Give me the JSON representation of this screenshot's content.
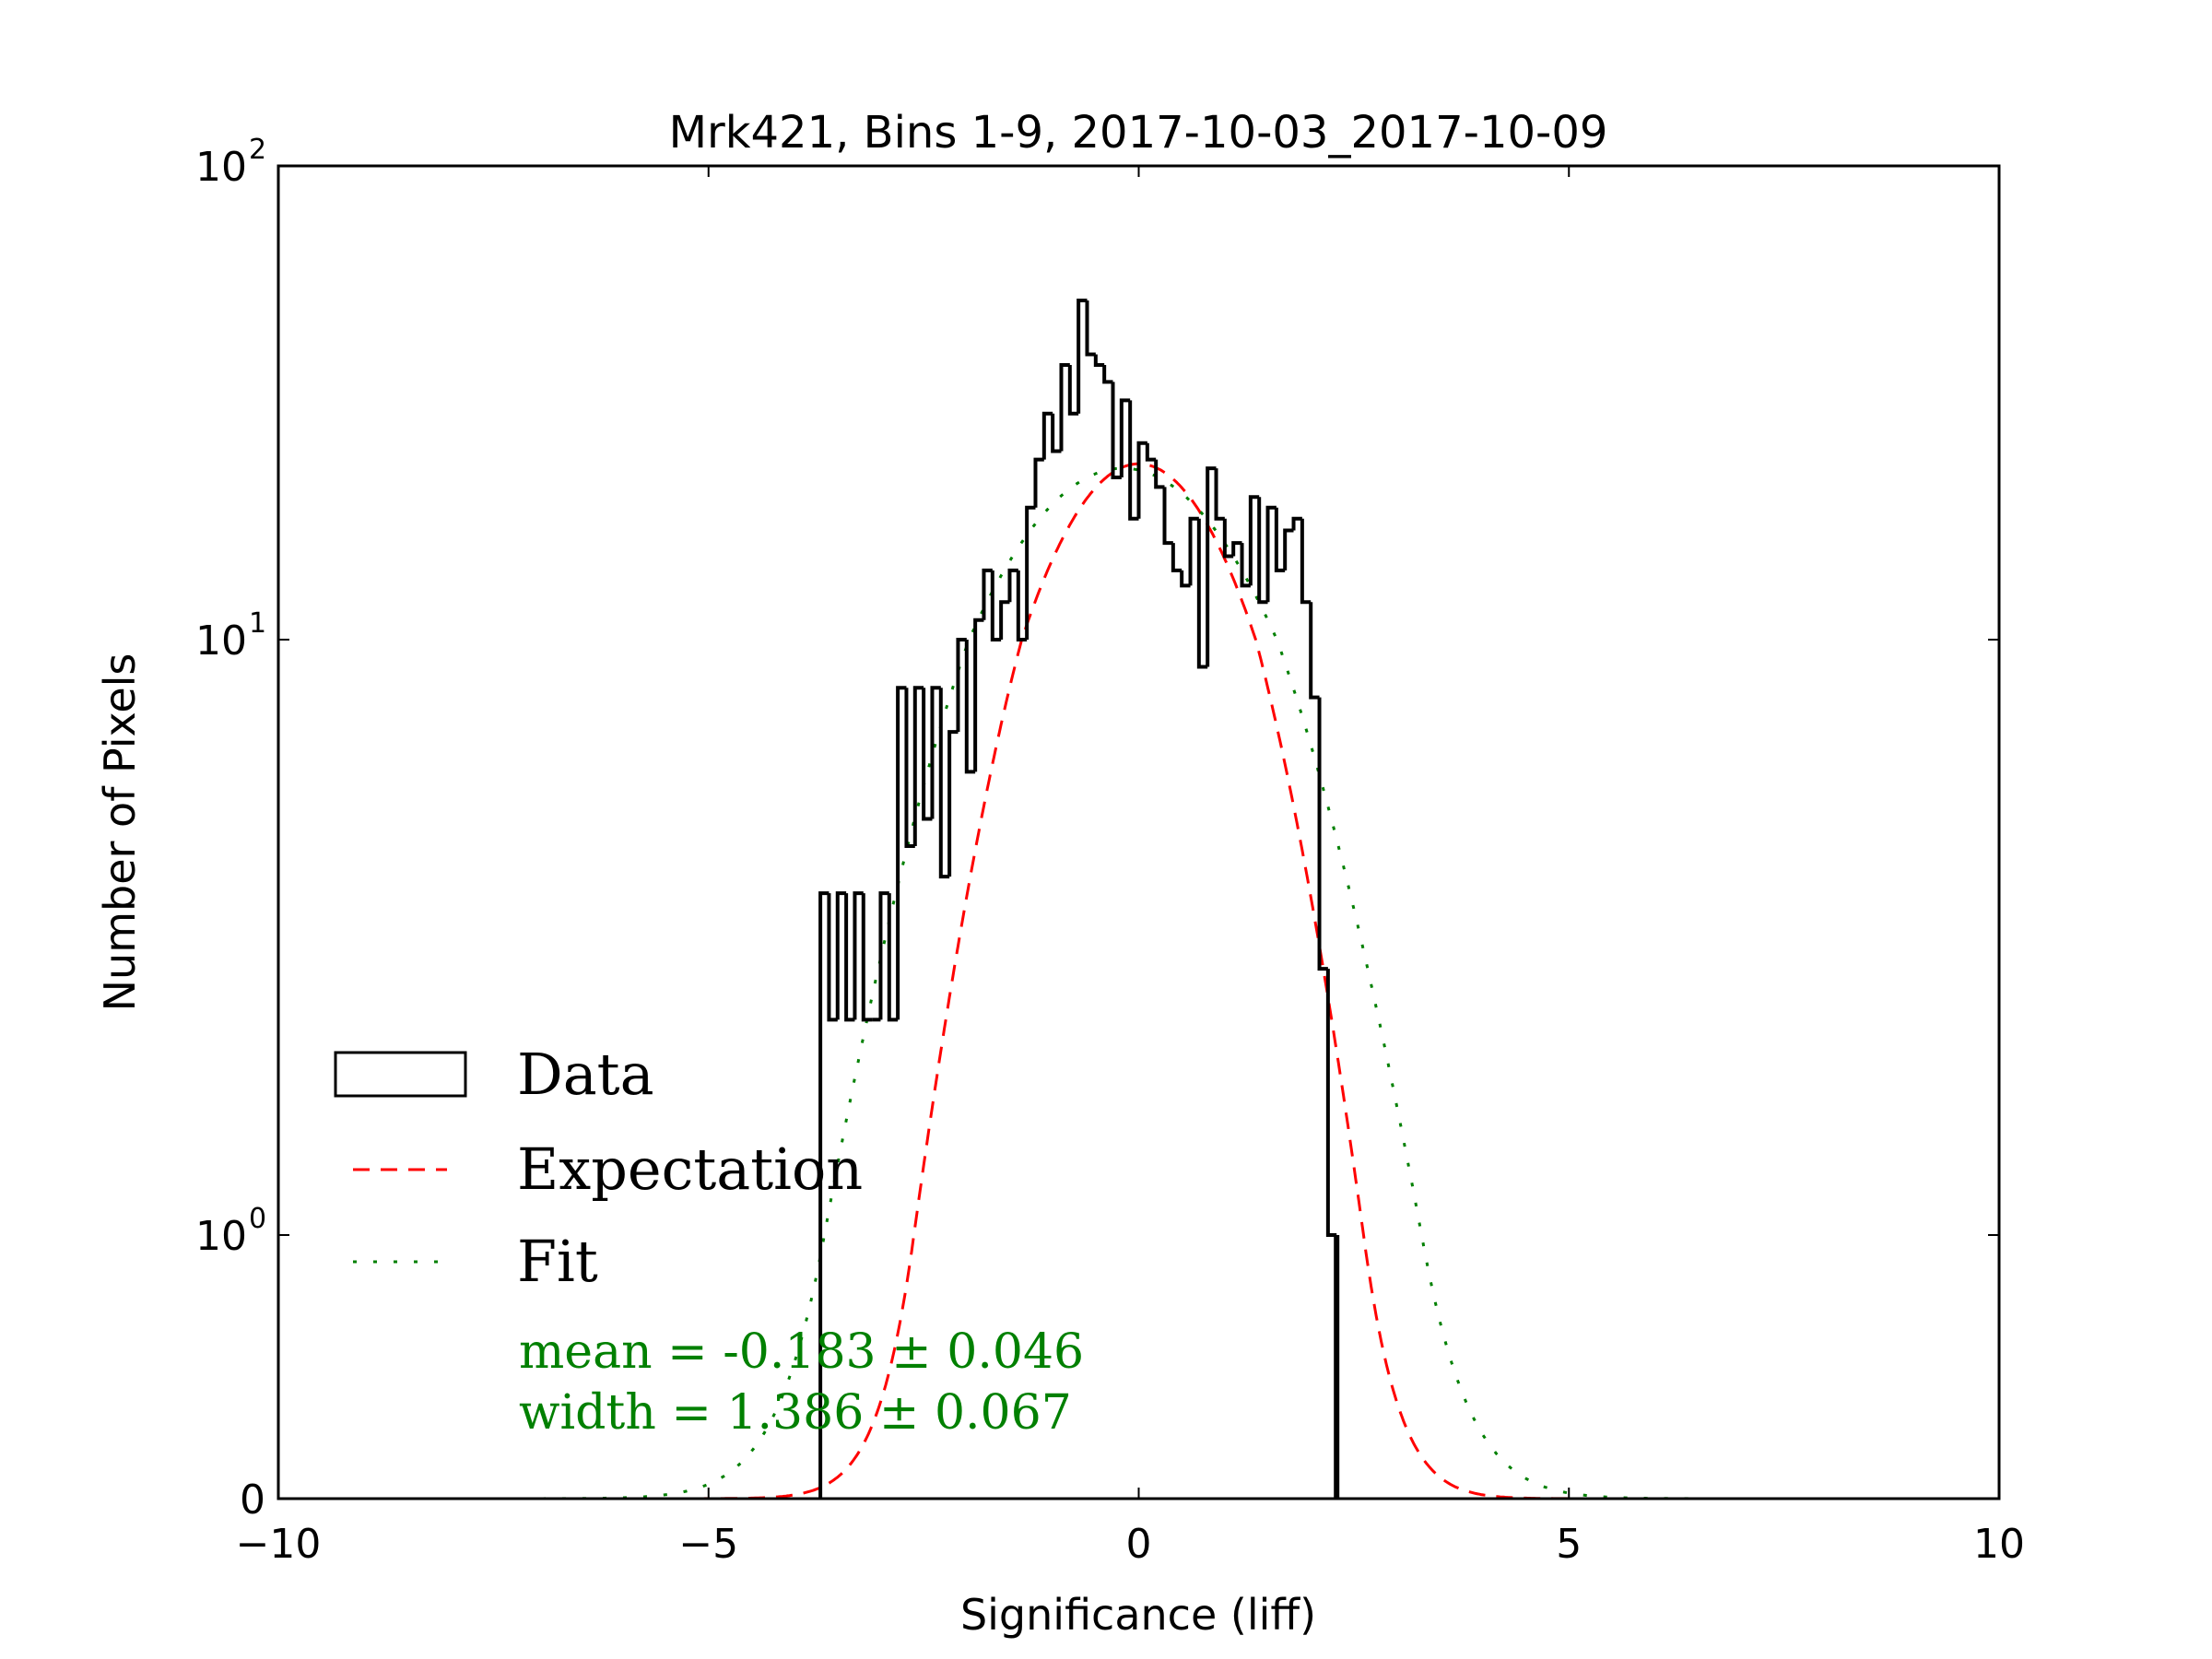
{
  "chart_data": {
    "type": "line",
    "title": "Mrk421, Bins 1-9, 2017-10-03_2017-10-09",
    "xlabel": "Significance (liff)",
    "ylabel": "Number of Pixels",
    "xlim": [
      -10,
      10
    ],
    "yscale": "symlog",
    "ylim": [
      0,
      100
    ],
    "xticks": [
      {
        "value": -10,
        "label": "−10"
      },
      {
        "value": -5,
        "label": "−5"
      },
      {
        "value": 0,
        "label": "0"
      },
      {
        "value": 5,
        "label": "5"
      },
      {
        "value": 10,
        "label": "10"
      }
    ],
    "yticks": [
      {
        "value": 0,
        "base": "0",
        "exp": ""
      },
      {
        "value": 1,
        "base": "10",
        "exp": "0"
      },
      {
        "value": 10,
        "base": "10",
        "exp": "1"
      },
      {
        "value": 100,
        "base": "10",
        "exp": "2"
      }
    ],
    "histogram": {
      "name": "Data",
      "bin_start": -3.7,
      "bin_width": 0.1,
      "values": [
        3.75,
        2.3,
        3.75,
        2.3,
        3.75,
        2.3,
        2.3,
        3.75,
        2.3,
        8.3,
        4.5,
        8.3,
        5,
        8.3,
        4,
        7,
        10,
        6,
        11,
        14,
        10,
        12,
        14,
        10,
        19,
        24,
        30,
        25,
        38,
        30,
        52,
        40,
        38,
        35,
        22,
        32,
        18,
        26,
        24,
        21,
        16,
        14,
        13,
        18,
        9,
        23,
        18,
        15,
        16,
        13,
        20,
        12,
        19,
        14,
        17,
        18,
        12,
        8,
        2.8,
        1
      ]
    },
    "curves": [
      {
        "name": "Expectation",
        "kind": "gaussian",
        "amplitude": 23.5,
        "mean": 0.0,
        "sigma": 1.04,
        "color": "#ff0000",
        "style": "dashed"
      },
      {
        "name": "Fit",
        "kind": "gaussian",
        "amplitude": 23,
        "mean": -0.183,
        "sigma": 1.386,
        "color": "#008000",
        "style": "dashdot"
      }
    ],
    "legend": {
      "placement": "lower-left",
      "entries": [
        "Data",
        "Expectation",
        "Fit"
      ]
    },
    "annotations": {
      "mean": "mean = -0.183 ± 0.046",
      "width": "width = 1.386 ± 0.067",
      "color": "#008000"
    },
    "grid": false
  }
}
